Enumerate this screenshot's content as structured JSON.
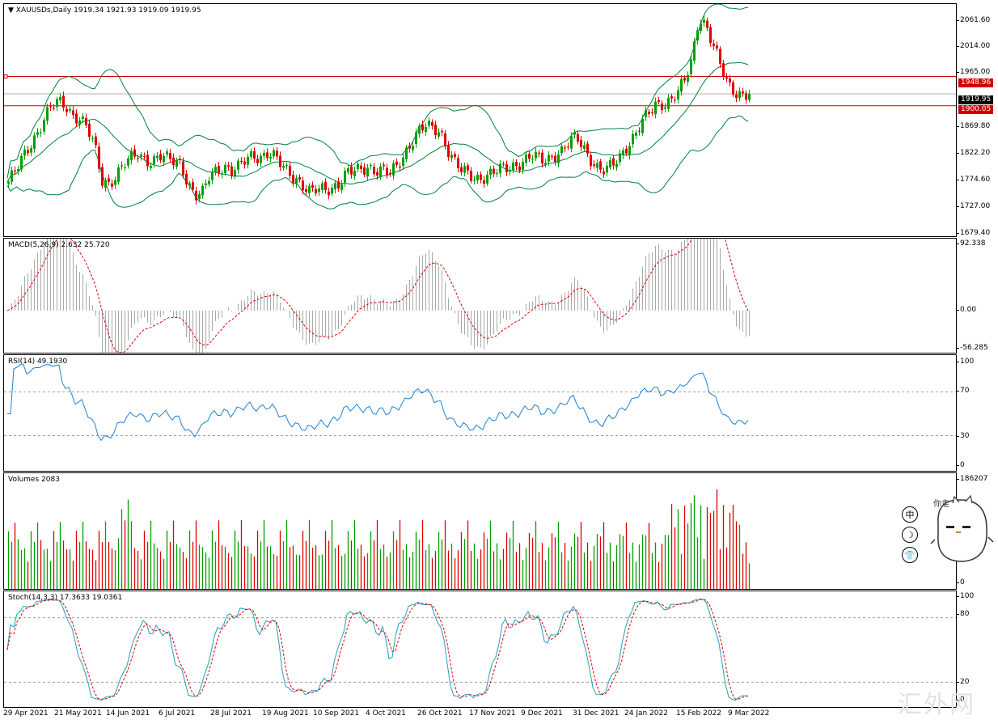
{
  "header": {
    "arrow": "▼",
    "symbol": "XAUUSDs,Daily",
    "ohlc": "1919.34 1921.93 1919.09 1919.95"
  },
  "price_axis": {
    "ticks": [
      "2061.60",
      "2014.00",
      "1965.00",
      "1869.80",
      "1822.20",
      "1774.60",
      "1727.00",
      "1679.40"
    ],
    "current": "1919.95",
    "line_high": "1948.96",
    "line_low": "1900.05"
  },
  "macd": {
    "label": "MACD(5,26,9) 2.632 25.720",
    "ticks": [
      "92.338",
      "0.00",
      "-56.285"
    ]
  },
  "rsi": {
    "label": "RSI(14) 49.1930",
    "ticks": [
      "100",
      "70",
      "30",
      "0"
    ]
  },
  "volumes": {
    "label": "Volumes 2083",
    "ticks": [
      "186207",
      "0"
    ]
  },
  "stoch": {
    "label": "Stoch(14,3,3) 17.3633 19.0361",
    "ticks": [
      "100",
      "80",
      "20",
      "0"
    ]
  },
  "time_axis": [
    "29 Apr 2021",
    "21 May 2021",
    "14 Jun 2021",
    "6 Jul 2021",
    "28 Jul 2021",
    "19 Aug 2021",
    "10 Sep 2021",
    "4 Oct 2021",
    "26 Oct 2021",
    "17 Nov 2021",
    "9 Dec 2021",
    "31 Dec 2021",
    "24 Jan 2022",
    "15 Feb 2022",
    "9 Mar 2022"
  ],
  "tools": {
    "center_icon": "中",
    "moon_icon": "☽",
    "shirt_icon": "👕"
  },
  "mascot": {
    "text": "你走"
  },
  "watermark": "汇外网",
  "colors": {
    "bull": "#00a000",
    "bear": "#e00000",
    "band": "#008040",
    "hline": "#d00000",
    "rsi": "#2080d0",
    "signal": "#e00000"
  },
  "chart_data": {
    "type": "candlestick",
    "title": "XAUUSDs,Daily",
    "close_anchors": [
      1773,
      1790,
      1812,
      1835,
      1856,
      1880,
      1898,
      1905,
      1900,
      1885,
      1880,
      1860,
      1830,
      1775,
      1772,
      1785,
      1800,
      1810,
      1820,
      1812,
      1808,
      1815,
      1810,
      1808,
      1805,
      1770,
      1748,
      1752,
      1785,
      1795,
      1800,
      1790,
      1795,
      1810,
      1820,
      1815,
      1820,
      1812,
      1800,
      1790,
      1780,
      1765,
      1752,
      1760,
      1762,
      1765,
      1770,
      1785,
      1790,
      1795,
      1800,
      1792,
      1790,
      1785,
      1800,
      1820,
      1840,
      1855,
      1865,
      1862,
      1860,
      1830,
      1805,
      1790,
      1785,
      1780,
      1782,
      1785,
      1790,
      1795,
      1800,
      1805,
      1810,
      1815,
      1808,
      1812,
      1820,
      1825,
      1838,
      1846,
      1830,
      1812,
      1795,
      1790,
      1800,
      1815,
      1835,
      1850,
      1870,
      1885,
      1902,
      1905,
      1910,
      1920,
      1940,
      1975,
      2052,
      2035,
      2000,
      1965,
      1935,
      1925,
      1920,
      1919.95
    ],
    "price_range": [
      1679.4,
      2070
    ],
    "macd_range": [
      -56.285,
      92.338
    ],
    "rsi_levels": [
      30,
      70
    ],
    "stoch_levels": [
      20,
      80
    ],
    "volume_max": 186207
  }
}
